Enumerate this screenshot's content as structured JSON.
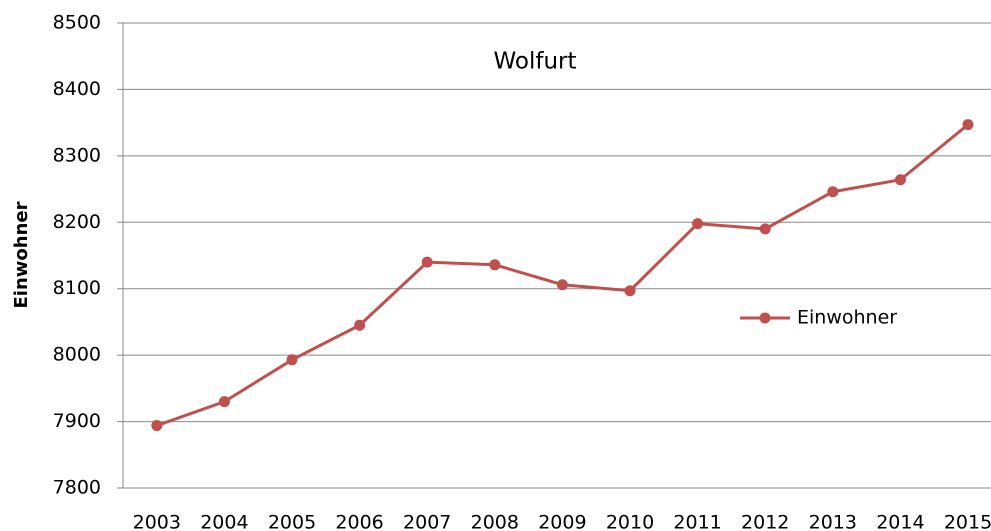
{
  "chart_data": {
    "type": "line",
    "title": "Wolfurt",
    "y_label": "Einwohner",
    "categories": [
      "2003",
      "2004",
      "2005",
      "2006",
      "2007",
      "2008",
      "2009",
      "2010",
      "2011",
      "2012",
      "2013",
      "2014",
      "2015"
    ],
    "series": [
      {
        "name": "Einwohner",
        "color": "#c0504d",
        "values": [
          7894,
          7930,
          7993,
          8045,
          8140,
          8136,
          8106,
          8097,
          8198,
          8190,
          8246,
          8264,
          8347
        ]
      }
    ],
    "ylim": [
      7800,
      8500
    ],
    "yticks": [
      7800,
      7900,
      8000,
      8100,
      8200,
      8300,
      8400,
      8500
    ],
    "grid": true,
    "legend": "right"
  }
}
